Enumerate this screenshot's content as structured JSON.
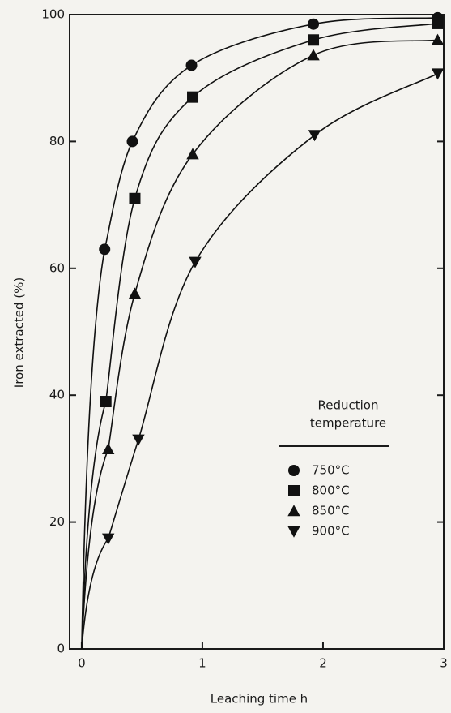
{
  "chart_data": {
    "type": "line",
    "x_label": "Leaching time  h",
    "y_label": "Iron extracted (%)",
    "legend_title": [
      "Reduction",
      "temperature"
    ],
    "xlim": [
      -0.1,
      3
    ],
    "xticks": [
      0,
      1,
      2,
      3
    ],
    "ylim": [
      0,
      100
    ],
    "yticks": [
      0,
      20,
      40,
      60,
      80,
      100
    ],
    "series": [
      {
        "name": "750°C",
        "color": "#111111",
        "marker": "circle",
        "x": [
          0.19,
          0.42,
          0.91,
          1.92,
          2.95
        ],
        "values": [
          63,
          80,
          92,
          98.5,
          99.5
        ]
      },
      {
        "name": "800°C",
        "color": "#111111",
        "marker": "square",
        "x": [
          0.2,
          0.44,
          0.92,
          1.92,
          2.95
        ],
        "values": [
          39,
          71,
          87,
          96,
          98.6
        ]
      },
      {
        "name": "850°C",
        "color": "#111111",
        "marker": "triangle",
        "x": [
          0.22,
          0.44,
          0.92,
          1.92,
          2.95
        ],
        "values": [
          31.5,
          56,
          78,
          93.6,
          96
        ]
      },
      {
        "name": "900°C",
        "color": "#111111",
        "marker": "triangle-down",
        "x": [
          0.22,
          0.47,
          0.94,
          1.93,
          2.95
        ],
        "values": [
          17.4,
          33,
          61,
          81,
          90.7
        ]
      }
    ]
  }
}
